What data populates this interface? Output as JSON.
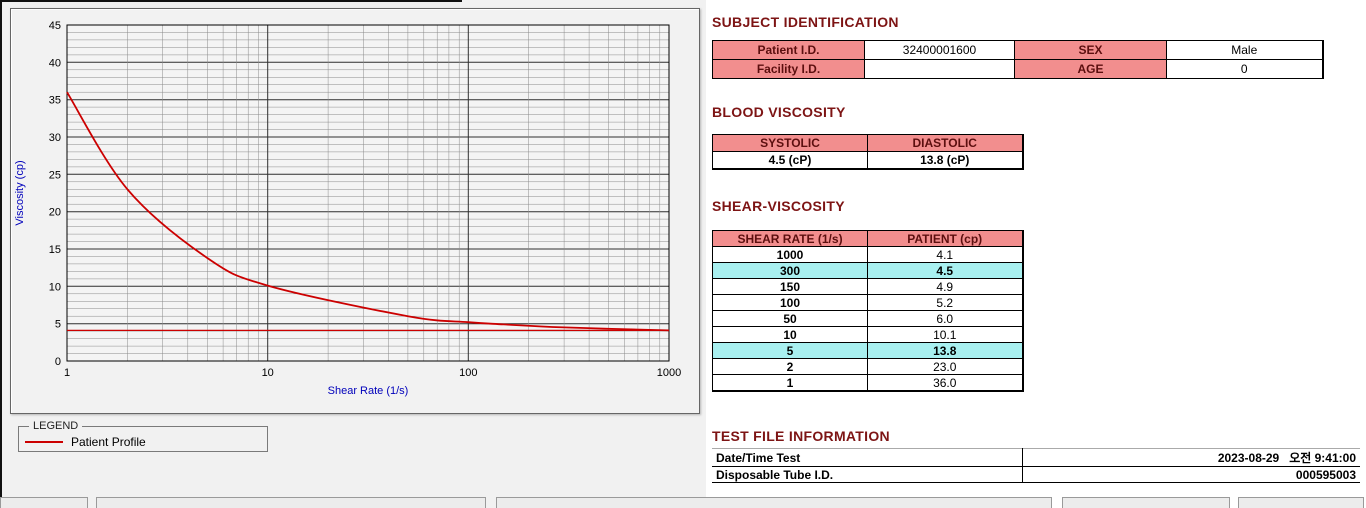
{
  "titles": {
    "subject_identification": "SUBJECT IDENTIFICATION",
    "blood_viscosity": "BLOOD VISCOSITY",
    "shear_viscosity": "SHEAR-VISCOSITY",
    "test_file_information": "TEST FILE INFORMATION"
  },
  "subject": {
    "patient_id_label": "Patient I.D.",
    "patient_id": "32400001600",
    "sex_label": "SEX",
    "sex": "Male",
    "facility_id_label": "Facility I.D.",
    "facility_id": "",
    "age_label": "AGE",
    "age": "0"
  },
  "blood_viscosity": {
    "systolic_label": "SYSTOLIC",
    "diastolic_label": "DIASTOLIC",
    "systolic_value": "4.5 (cP)",
    "diastolic_value": "13.8 (cP)"
  },
  "shear_viscosity": {
    "headers": [
      "SHEAR RATE (1/s)",
      "PATIENT (cp)"
    ],
    "rows": [
      {
        "shear_rate": "1000",
        "patient": "4.1",
        "highlight": false
      },
      {
        "shear_rate": "300",
        "patient": "4.5",
        "highlight": true
      },
      {
        "shear_rate": "150",
        "patient": "4.9",
        "highlight": false
      },
      {
        "shear_rate": "100",
        "patient": "5.2",
        "highlight": false
      },
      {
        "shear_rate": "50",
        "patient": "6.0",
        "highlight": false
      },
      {
        "shear_rate": "10",
        "patient": "10.1",
        "highlight": false
      },
      {
        "shear_rate": "5",
        "patient": "13.8",
        "highlight": true
      },
      {
        "shear_rate": "2",
        "patient": "23.0",
        "highlight": false
      },
      {
        "shear_rate": "1",
        "patient": "36.0",
        "highlight": false
      }
    ]
  },
  "test_file": {
    "rows": [
      {
        "label": "Date/Time Test",
        "value": "2023-08-29   오전 9:41:00"
      },
      {
        "label": "Disposable Tube I.D.",
        "value": "000595003"
      }
    ]
  },
  "legend": {
    "box_label": "LEGEND",
    "series_label": "Patient Profile"
  },
  "chart_data": {
    "type": "line",
    "title": "",
    "xlabel": "Shear Rate (1/s)",
    "ylabel": "Viscosity (cp)",
    "x_scale": "log",
    "xlim": [
      1,
      1000
    ],
    "ylim": [
      0,
      45
    ],
    "x_ticks": [
      1,
      10,
      100,
      1000
    ],
    "y_ticks": [
      0,
      5,
      10,
      15,
      20,
      25,
      30,
      35,
      40,
      45
    ],
    "grid": "on",
    "legend_position": "below-left",
    "baseline": 4.1,
    "series": [
      {
        "name": "Patient Profile",
        "color": "#cc0000",
        "x": [
          1,
          2,
          5,
          10,
          50,
          100,
          150,
          300,
          1000
        ],
        "y": [
          36.0,
          23.0,
          13.8,
          10.1,
          6.0,
          5.2,
          4.9,
          4.5,
          4.1
        ]
      }
    ],
    "colors": {
      "axis_label": "#0000bb",
      "grid_major": "#2f2f2f",
      "grid_minor": "#8a8a8a"
    }
  }
}
